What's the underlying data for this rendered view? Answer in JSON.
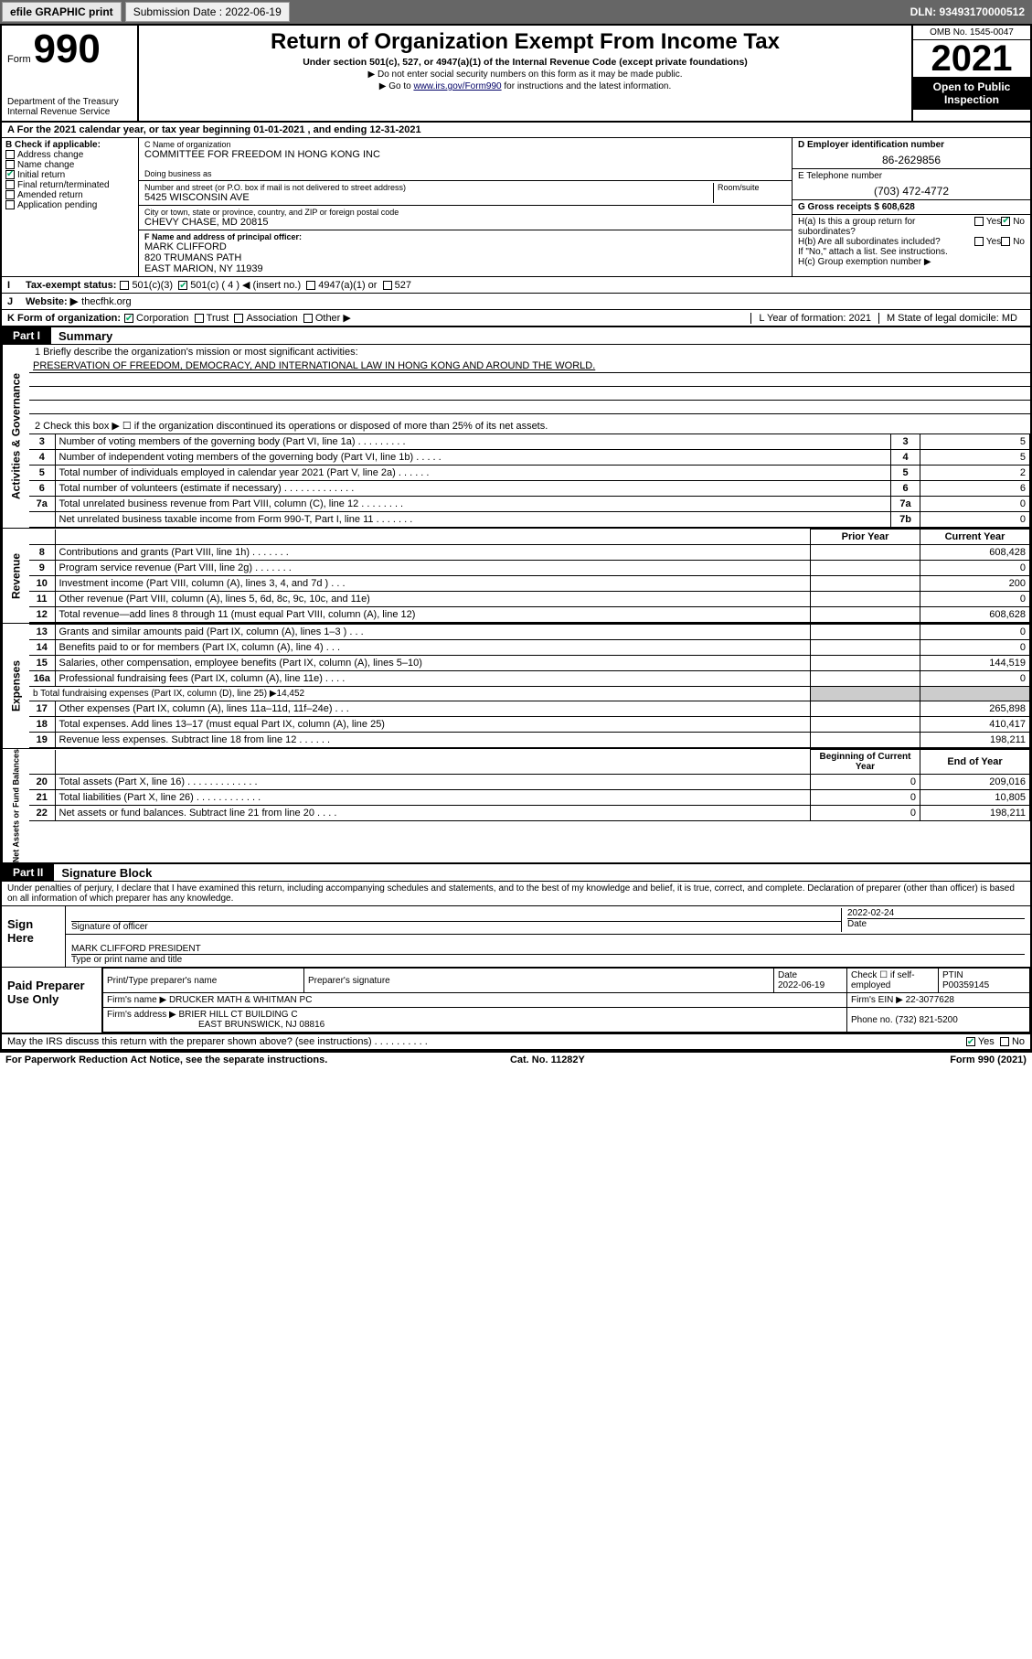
{
  "topbar": {
    "efile_label": "efile GRAPHIC print",
    "sub_label": "Submission Date : 2022-06-19",
    "dln": "DLN: 93493170000512"
  },
  "header": {
    "form_label": "Form",
    "form_num": "990",
    "dept": "Department of the Treasury",
    "irs": "Internal Revenue Service",
    "title": "Return of Organization Exempt From Income Tax",
    "sub1": "Under section 501(c), 527, or 4947(a)(1) of the Internal Revenue Code (except private foundations)",
    "sub2": "▶ Do not enter social security numbers on this form as it may be made public.",
    "sub3_pre": "▶ Go to ",
    "sub3_link": "www.irs.gov/Form990",
    "sub3_post": " for instructions and the latest information.",
    "omb": "OMB No. 1545-0047",
    "year": "2021",
    "open": "Open to Public Inspection"
  },
  "period": "For the 2021 calendar year, or tax year beginning 01-01-2021   , and ending 12-31-2021",
  "colB": {
    "head": "B Check if applicable:",
    "items": [
      "Address change",
      "Name change",
      "Initial return",
      "Final return/terminated",
      "Amended return",
      "Application pending"
    ]
  },
  "colC": {
    "name_lbl": "C Name of organization",
    "name": "COMMITTEE FOR FREEDOM IN HONG KONG INC",
    "dba_lbl": "Doing business as",
    "addr_lbl": "Number and street (or P.O. box if mail is not delivered to street address)",
    "room_lbl": "Room/suite",
    "addr": "5425 WISCONSIN AVE",
    "city_lbl": "City or town, state or province, country, and ZIP or foreign postal code",
    "city": "CHEVY CHASE, MD  20815",
    "officer_lbl": "F Name and address of principal officer:",
    "officer1": "MARK CLIFFORD",
    "officer2": "820 TRUMANS PATH",
    "officer3": "EAST MARION, NY  11939"
  },
  "colD": {
    "d_lbl": "D Employer identification number",
    "ein": "86-2629856",
    "e_lbl": "E Telephone number",
    "phone": "(703) 472-4772",
    "g_lbl": "G Gross receipts $ 608,628",
    "ha": "H(a)  Is this a group return for subordinates?",
    "hb": "H(b)  Are all subordinates included?",
    "hnote": "If \"No,\" attach a list. See instructions.",
    "hc": "H(c)  Group exemption number ▶"
  },
  "taxstatus_lbl": "Tax-exempt status:",
  "taxstatus_opts": [
    "501(c)(3)",
    "501(c) ( 4 ) ◀ (insert no.)",
    "4947(a)(1) or",
    "527"
  ],
  "website_lbl": "Website: ▶",
  "website": "thecfhk.org",
  "K_lbl": "K Form of organization:",
  "K_opts": [
    "Corporation",
    "Trust",
    "Association",
    "Other ▶"
  ],
  "L_lbl": "L Year of formation: 2021",
  "M_lbl": "M State of legal domicile: MD",
  "partI_title": "Summary",
  "q1_lbl": "1  Briefly describe the organization's mission or most significant activities:",
  "mission": "PRESERVATION OF FREEDOM, DEMOCRACY, AND INTERNATIONAL LAW IN HONG KONG AND AROUND THE WORLD.",
  "q2_lbl": "2  Check this box ▶ ☐  if the organization discontinued its operations or disposed of more than 25% of its net assets.",
  "gov_rows": [
    {
      "n": "3",
      "t": "Number of voting members of the governing body (Part VI, line 1a)   .   .   .   .   .   .   .   .   .",
      "k": "3",
      "v": "5"
    },
    {
      "n": "4",
      "t": "Number of independent voting members of the governing body (Part VI, line 1b)  .   .   .   .   .",
      "k": "4",
      "v": "5"
    },
    {
      "n": "5",
      "t": "Total number of individuals employed in calendar year 2021 (Part V, line 2a)  .   .   .   .   .   .",
      "k": "5",
      "v": "2"
    },
    {
      "n": "6",
      "t": "Total number of volunteers (estimate if necessary)  .   .   .   .   .   .   .   .   .   .   .   .   .",
      "k": "6",
      "v": "6"
    },
    {
      "n": "7a",
      "t": "Total unrelated business revenue from Part VIII, column (C), line 12  .   .   .   .   .   .   .   .",
      "k": "7a",
      "v": "0"
    },
    {
      "n": "",
      "t": "Net unrelated business taxable income from Form 990-T, Part I, line 11  .   .   .   .   .   .   .",
      "k": "7b",
      "v": "0"
    }
  ],
  "rev_head_prior": "Prior Year",
  "rev_head_cur": "Current Year",
  "rev_rows": [
    {
      "n": "8",
      "t": "Contributions and grants (Part VIII, line 1h)   .   .   .   .   .   .   .",
      "p": "",
      "c": "608,428"
    },
    {
      "n": "9",
      "t": "Program service revenue (Part VIII, line 2g)   .   .   .   .   .   .   .",
      "p": "",
      "c": "0"
    },
    {
      "n": "10",
      "t": "Investment income (Part VIII, column (A), lines 3, 4, and 7d )  .   .   .",
      "p": "",
      "c": "200"
    },
    {
      "n": "11",
      "t": "Other revenue (Part VIII, column (A), lines 5, 6d, 8c, 9c, 10c, and 11e)",
      "p": "",
      "c": "0"
    },
    {
      "n": "12",
      "t": "Total revenue—add lines 8 through 11 (must equal Part VIII, column (A), line 12)",
      "p": "",
      "c": "608,628"
    }
  ],
  "exp_rows": [
    {
      "n": "13",
      "t": "Grants and similar amounts paid (Part IX, column (A), lines 1–3 )  .   .   .",
      "p": "",
      "c": "0"
    },
    {
      "n": "14",
      "t": "Benefits paid to or for members (Part IX, column (A), line 4)  .   .   .",
      "p": "",
      "c": "0"
    },
    {
      "n": "15",
      "t": "Salaries, other compensation, employee benefits (Part IX, column (A), lines 5–10)",
      "p": "",
      "c": "144,519"
    },
    {
      "n": "16a",
      "t": "Professional fundraising fees (Part IX, column (A), line 11e)   .   .   .   .",
      "p": "",
      "c": "0"
    }
  ],
  "line_b": "b  Total fundraising expenses (Part IX, column (D), line 25) ▶14,452",
  "exp_rows2": [
    {
      "n": "17",
      "t": "Other expenses (Part IX, column (A), lines 11a–11d, 11f–24e)  .   .   .",
      "p": "",
      "c": "265,898"
    },
    {
      "n": "18",
      "t": "Total expenses. Add lines 13–17 (must equal Part IX, column (A), line 25)",
      "p": "",
      "c": "410,417"
    },
    {
      "n": "19",
      "t": "Revenue less expenses. Subtract line 18 from line 12  .   .   .   .   .   .",
      "p": "",
      "c": "198,211"
    }
  ],
  "na_head_b": "Beginning of Current Year",
  "na_head_e": "End of Year",
  "na_rows": [
    {
      "n": "20",
      "t": "Total assets (Part X, line 16)  .   .   .   .   .   .   .   .   .   .   .   .   .",
      "b": "0",
      "e": "209,016"
    },
    {
      "n": "21",
      "t": "Total liabilities (Part X, line 26)  .   .   .   .   .   .   .   .   .   .   .   .",
      "b": "0",
      "e": "10,805"
    },
    {
      "n": "22",
      "t": "Net assets or fund balances. Subtract line 21 from line 20  .   .   .   .",
      "b": "0",
      "e": "198,211"
    }
  ],
  "partII_title": "Signature Block",
  "penalties": "Under penalties of perjury, I declare that I have examined this return, including accompanying schedules and statements, and to the best of my knowledge and belief, it is true, correct, and complete. Declaration of preparer (other than officer) is based on all information of which preparer has any knowledge.",
  "sign": {
    "here": "Sign Here",
    "sig_lbl": "Signature of officer",
    "date": "2022-02-24",
    "date_lbl": "Date",
    "name": "MARK CLIFFORD PRESIDENT",
    "name_lbl": "Type or print name and title"
  },
  "paid": {
    "title": "Paid Preparer Use Only",
    "c1": "Print/Type preparer's name",
    "c2": "Preparer's signature",
    "c3": "Date",
    "date": "2022-06-19",
    "c4": "Check ☐ if self-employed",
    "c5": "PTIN",
    "ptin": "P00359145",
    "firm_lbl": "Firm's name    ▶",
    "firm": "DRUCKER MATH & WHITMAN PC",
    "ein_lbl": "Firm's EIN ▶",
    "ein": "22-3077628",
    "addr_lbl": "Firm's address ▶",
    "addr1": "BRIER HILL CT BUILDING C",
    "addr2": "EAST BRUNSWICK, NJ  08816",
    "phone_lbl": "Phone no.",
    "phone": "(732) 821-5200"
  },
  "discuss": "May the IRS discuss this return with the preparer shown above? (see instructions)   .   .   .   .   .   .   .   .   .   .",
  "foot": {
    "l": "For Paperwork Reduction Act Notice, see the separate instructions.",
    "c": "Cat. No. 11282Y",
    "r": "Form 990 (2021)"
  },
  "yes": "Yes",
  "no": "No",
  "side": {
    "gov": "Activities & Governance",
    "rev": "Revenue",
    "exp": "Expenses",
    "na": "Net Assets or Fund Balances"
  }
}
